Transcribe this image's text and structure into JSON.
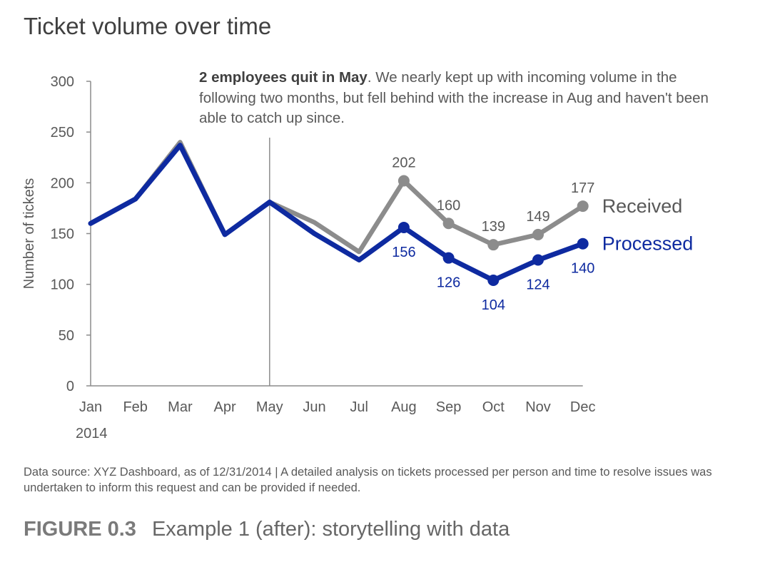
{
  "title": "Ticket volume over time",
  "annotation": {
    "bold": "2 employees quit in May",
    "rest": ". We nearly kept up with incoming volume in the following two months, but fell behind with the increase in Aug and haven't been able to catch up since."
  },
  "footnote": "Data source: XYZ Dashboard, as of 12/31/2014  |  A detailed analysis on tickets processed per person and time to resolve issues was undertaken to inform this request and can be provided if needed.",
  "caption": {
    "figure": "FIGURE 0.3",
    "text": "Example 1 (after): storytelling with data"
  },
  "chart_data": {
    "type": "line",
    "title": "Ticket volume over time",
    "ylabel": "Number of tickets",
    "xlabel": "",
    "year_label": "2014",
    "categories": [
      "Jan",
      "Feb",
      "Mar",
      "Apr",
      "May",
      "Jun",
      "Jul",
      "Aug",
      "Sep",
      "Oct",
      "Nov",
      "Dec"
    ],
    "ylim": [
      0,
      300
    ],
    "yticks": [
      0,
      50,
      100,
      150,
      200,
      250,
      300
    ],
    "grid": false,
    "legend": "direct labels at right end of lines",
    "marker_line_at": "May",
    "series": [
      {
        "name": "Received",
        "color": "#8c8c8c",
        "values": [
          160,
          184,
          240,
          149,
          181,
          161,
          132,
          202,
          160,
          139,
          149,
          177
        ],
        "labeled_from": "Aug"
      },
      {
        "name": "Processed",
        "color": "#0e2aa0",
        "values": [
          160,
          184,
          237,
          149,
          181,
          150,
          124,
          156,
          126,
          104,
          124,
          140
        ],
        "labeled_from": "Aug"
      }
    ]
  }
}
